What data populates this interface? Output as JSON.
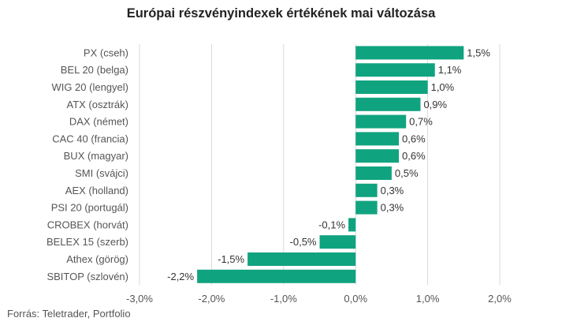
{
  "chart_data": {
    "type": "bar",
    "orientation": "horizontal",
    "title": "Európai részvényindexek értékének mai változása",
    "categories": [
      "PX (cseh)",
      "BEL 20 (belga)",
      "WIG 20 (lengyel)",
      "ATX (osztrák)",
      "DAX (német)",
      "CAC 40 (francia)",
      "BUX (magyar)",
      "SMI (svájci)",
      "AEX (holland)",
      "PSI 20 (portugál)",
      "CROBEX (horvát)",
      "BELEX 15 (szerb)",
      "Athex (görög)",
      "SBITOP (szlovén)"
    ],
    "values": [
      1.5,
      1.1,
      1.0,
      0.9,
      0.7,
      0.6,
      0.6,
      0.5,
      0.3,
      0.3,
      -0.1,
      -0.5,
      -1.5,
      -2.2
    ],
    "value_labels": [
      "1,5%",
      "1,1%",
      "1,0%",
      "0,9%",
      "0,7%",
      "0,6%",
      "0,6%",
      "0,5%",
      "0,3%",
      "0,3%",
      "-0,1%",
      "-0,5%",
      "-1,5%",
      "-2,2%"
    ],
    "xlim": [
      -3.0,
      2.0
    ],
    "x_ticks": [
      -3.0,
      -2.0,
      -1.0,
      0.0,
      1.0,
      2.0
    ],
    "x_tick_labels": [
      "-3,0%",
      "-2,0%",
      "-1,0%",
      "0,0%",
      "1,0%",
      "2,0%"
    ],
    "xlabel": "",
    "ylabel": "",
    "grid": "vertical",
    "legend": "none",
    "bar_color": "#10a37f"
  },
  "source": "Forrás: Teletrader, Portfolio"
}
